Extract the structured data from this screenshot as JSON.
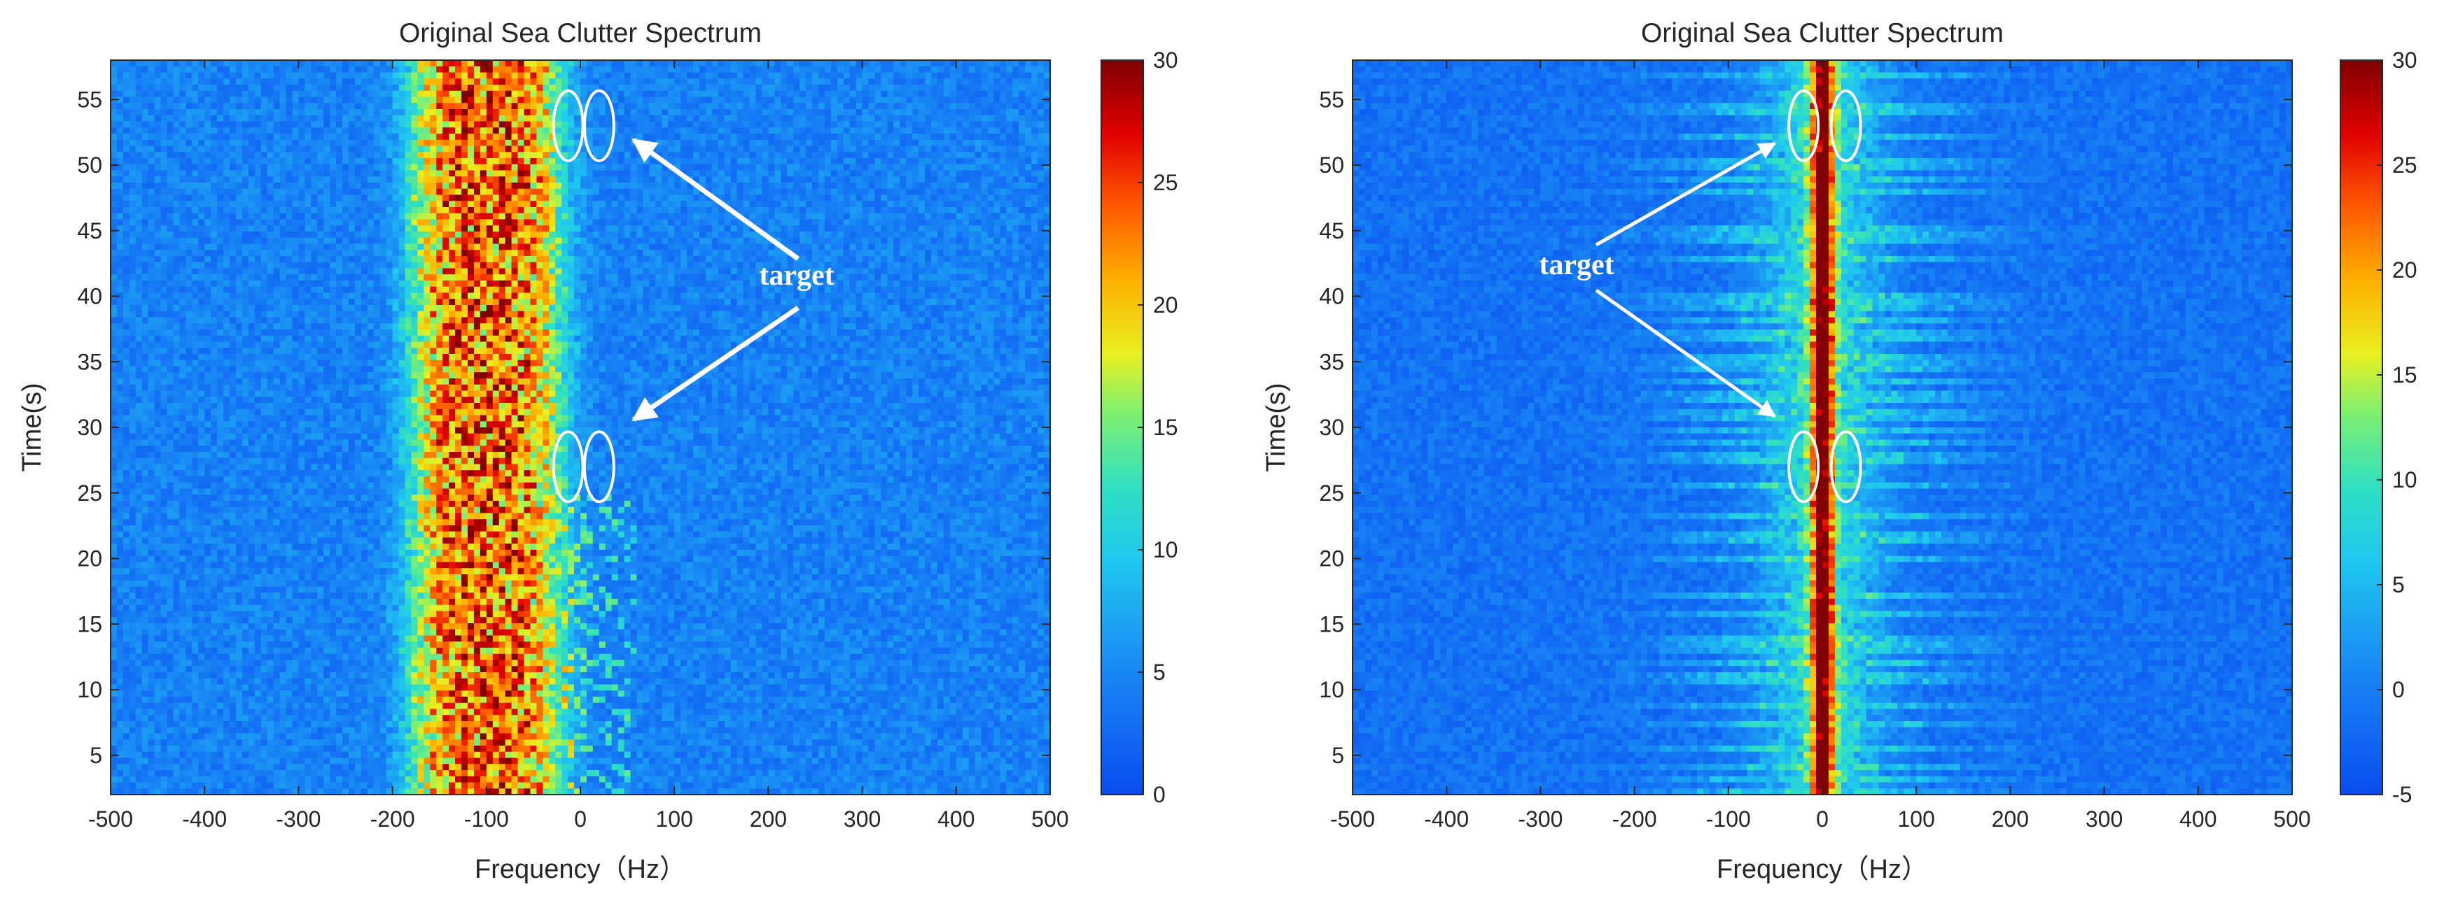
{
  "chart_data": [
    {
      "type": "heatmap",
      "title": "Original Sea Clutter Spectrum",
      "xlabel": "Frequency（Hz）",
      "ylabel": "Time(s)",
      "xlim": [
        -500,
        500
      ],
      "ylim": [
        2,
        58
      ],
      "xticks": [
        "-500",
        "-400",
        "-300",
        "-200",
        "-100",
        "0",
        "100",
        "200",
        "300",
        "400",
        "500"
      ],
      "yticks": [
        "5",
        "10",
        "15",
        "20",
        "25",
        "30",
        "35",
        "40",
        "45",
        "50",
        "55"
      ],
      "colorbar": {
        "range": [
          0,
          30
        ],
        "ticks": [
          "0",
          "5",
          "10",
          "15",
          "20",
          "25",
          "30"
        ]
      },
      "clutter_band_hz": [
        -170,
        60
      ],
      "clutter_center_hz": -100,
      "annotation": "target",
      "target_ellipses": [
        {
          "center_hz": -13,
          "center_s": 53
        },
        {
          "center_hz": 20,
          "center_s": 53
        },
        {
          "center_hz": -13,
          "center_s": 27
        },
        {
          "center_hz": 20,
          "center_s": 27
        }
      ]
    },
    {
      "type": "heatmap",
      "title": "Original Sea Clutter Spectrum",
      "xlabel": "Frequency（Hz）",
      "ylabel": "Time(s)",
      "xlim": [
        -500,
        500
      ],
      "ylim": [
        2,
        58
      ],
      "xticks": [
        "-500",
        "-400",
        "-300",
        "-200",
        "-100",
        "0",
        "100",
        "200",
        "300",
        "400",
        "500"
      ],
      "yticks": [
        "5",
        "10",
        "15",
        "20",
        "25",
        "30",
        "35",
        "40",
        "45",
        "50",
        "55"
      ],
      "colorbar": {
        "range": [
          -5,
          30
        ],
        "ticks": [
          "-5",
          "0",
          "5",
          "10",
          "15",
          "20",
          "25",
          "30"
        ]
      },
      "clutter_band_hz": [
        -60,
        60
      ],
      "clutter_center_hz": 0,
      "annotation": "target",
      "target_ellipses": [
        {
          "center_hz": -20,
          "center_s": 53
        },
        {
          "center_hz": 25,
          "center_s": 53
        },
        {
          "center_hz": -20,
          "center_s": 27
        },
        {
          "center_hz": 25,
          "center_s": 27
        }
      ]
    }
  ]
}
